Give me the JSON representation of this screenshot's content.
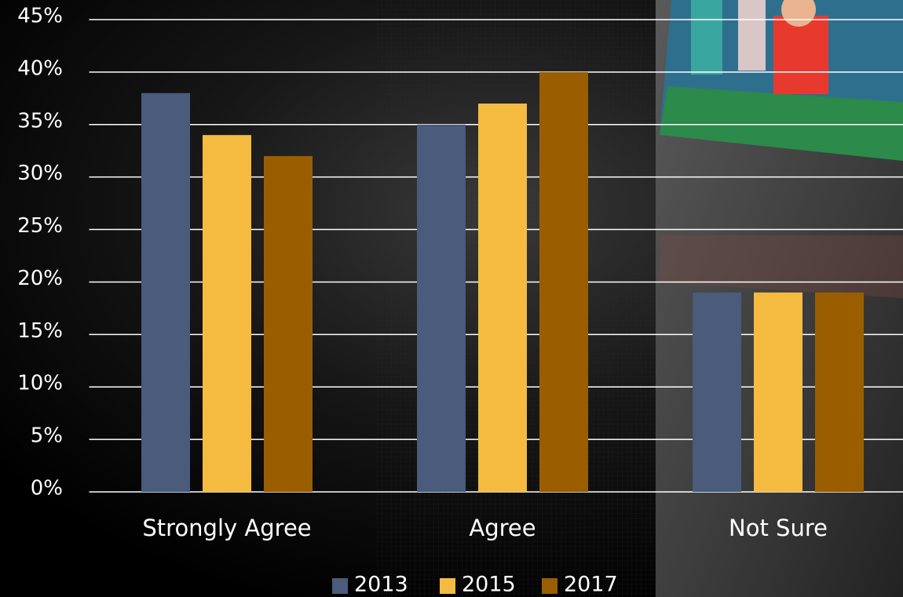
{
  "chart_data": {
    "type": "bar",
    "categories": [
      "Strongly Agree",
      "Agree",
      "Not Sure"
    ],
    "series": [
      {
        "name": "2013",
        "color": "#4a5b7b",
        "values": [
          38,
          35,
          19
        ]
      },
      {
        "name": "2015",
        "color": "#f5bb41",
        "values": [
          34,
          37,
          19
        ]
      },
      {
        "name": "2017",
        "color": "#9a5e00",
        "values": [
          32,
          40,
          19
        ]
      }
    ],
    "ylim": [
      0,
      45
    ],
    "yticks": [
      {
        "value": 0,
        "label": "0%"
      },
      {
        "value": 5,
        "label": "5%"
      },
      {
        "value": 10,
        "label": "10%"
      },
      {
        "value": 15,
        "label": "15%"
      },
      {
        "value": 20,
        "label": "20%"
      },
      {
        "value": 25,
        "label": "25%"
      },
      {
        "value": 30,
        "label": "30%"
      },
      {
        "value": 35,
        "label": "35%"
      },
      {
        "value": 40,
        "label": "40%"
      },
      {
        "value": 45,
        "label": "45%"
      }
    ],
    "grid": true,
    "legend": "bottom"
  }
}
